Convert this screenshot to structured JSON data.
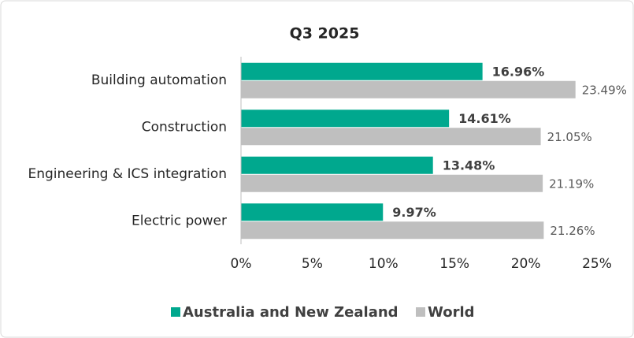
{
  "chart_data": {
    "type": "bar",
    "orientation": "horizontal",
    "title": "Q3 2025",
    "categories": [
      "Building automation",
      "Construction",
      "Engineering & ICS integration",
      "Electric power"
    ],
    "series": [
      {
        "name": "Australia and New Zealand",
        "color": "#00a88e",
        "values": [
          16.96,
          14.61,
          13.48,
          9.97
        ],
        "value_labels": [
          "16.96%",
          "14.61%",
          "13.48%",
          "9.97%"
        ]
      },
      {
        "name": "World",
        "color": "#bfbfbf",
        "values": [
          23.49,
          21.05,
          21.19,
          21.26
        ],
        "value_labels": [
          "23.49%",
          "21.05%",
          "21.19%",
          "21.26%"
        ]
      }
    ],
    "xlim": [
      0,
      25
    ],
    "xticks": [
      {
        "value": 0,
        "label": "0%"
      },
      {
        "value": 5,
        "label": "5%"
      },
      {
        "value": 10,
        "label": "10%"
      },
      {
        "value": 15,
        "label": "15%"
      },
      {
        "value": 20,
        "label": "20%"
      },
      {
        "value": 25,
        "label": "25%"
      }
    ],
    "grid": false,
    "legend": "bottom"
  }
}
